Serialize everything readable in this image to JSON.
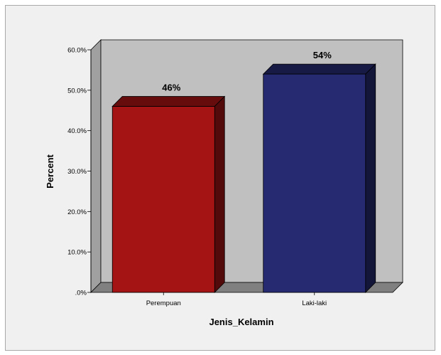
{
  "chart_data": {
    "type": "bar",
    "categories": [
      "Perempuan",
      "Laki-laki"
    ],
    "values": [
      46,
      54
    ],
    "data_labels": [
      "46%",
      "54%"
    ],
    "bar_colors": [
      "#a41414",
      "#262a71"
    ],
    "xlabel": "Jenis_Kelamin",
    "ylabel": "Percent",
    "ylim": [
      0,
      60
    ],
    "yticks": [
      0,
      10,
      20,
      30,
      40,
      50,
      60
    ],
    "ytick_labels": [
      ".0%",
      "10.0%",
      "20.0%",
      "30.0%",
      "40.0%",
      "50.0%",
      "60.0%"
    ],
    "style": "3d",
    "grid": false,
    "legend": "none",
    "wall_color": "#c0c0c0",
    "floor_color": "#808080"
  }
}
